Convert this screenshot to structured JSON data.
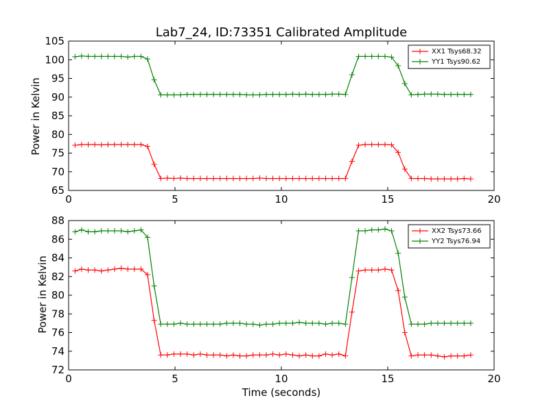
{
  "figure": {
    "title": "Lab7_24, ID:73351 Calibrated Amplitude"
  },
  "chart_data": [
    {
      "type": "line",
      "title": "Lab7_24, ID:73351 Calibrated Amplitude",
      "xlabel": "",
      "ylabel": "Power in Kelvin",
      "xlim": [
        0,
        20
      ],
      "ylim": [
        65,
        105
      ],
      "xticks": [
        0,
        5,
        10,
        15,
        20
      ],
      "yticks": [
        65,
        70,
        75,
        80,
        85,
        90,
        95,
        100,
        105
      ],
      "grid": false,
      "legend_position": "top-right",
      "x": [
        0.3,
        0.61,
        0.92,
        1.23,
        1.54,
        1.85,
        2.16,
        2.47,
        2.78,
        3.09,
        3.4,
        3.71,
        4.02,
        4.33,
        4.64,
        4.95,
        5.26,
        5.57,
        5.88,
        6.19,
        6.5,
        6.81,
        7.12,
        7.43,
        7.74,
        8.05,
        8.36,
        8.67,
        8.98,
        9.29,
        9.6,
        9.91,
        10.22,
        10.53,
        10.84,
        11.15,
        11.46,
        11.77,
        12.08,
        12.39,
        12.7,
        13.01,
        13.32,
        13.63,
        13.94,
        14.25,
        14.56,
        14.87,
        15.18,
        15.49,
        15.8,
        16.11,
        16.42,
        16.73,
        17.04,
        17.35,
        17.66,
        17.97,
        18.28,
        18.59,
        18.9
      ],
      "series": [
        {
          "name": "XX1 Tsys68.32",
          "color": "#ff0000",
          "values": [
            77.1,
            77.3,
            77.3,
            77.3,
            77.2,
            77.3,
            77.3,
            77.3,
            77.3,
            77.3,
            77.3,
            76.8,
            72.0,
            68.2,
            68.3,
            68.2,
            68.3,
            68.2,
            68.2,
            68.2,
            68.2,
            68.2,
            68.2,
            68.2,
            68.2,
            68.2,
            68.2,
            68.2,
            68.3,
            68.2,
            68.2,
            68.2,
            68.2,
            68.2,
            68.2,
            68.2,
            68.2,
            68.2,
            68.2,
            68.2,
            68.2,
            68.2,
            72.8,
            77.1,
            77.3,
            77.3,
            77.3,
            77.3,
            77.2,
            75.2,
            70.7,
            68.2,
            68.2,
            68.2,
            68.1,
            68.1,
            68.1,
            68.1,
            68.1,
            68.2,
            68.1
          ]
        },
        {
          "name": "YY1 Tsys90.62",
          "color": "#008000",
          "values": [
            100.8,
            101.0,
            100.9,
            100.9,
            100.9,
            100.9,
            100.9,
            100.9,
            100.7,
            100.9,
            100.9,
            100.2,
            94.6,
            90.6,
            90.6,
            90.6,
            90.6,
            90.7,
            90.7,
            90.7,
            90.7,
            90.7,
            90.7,
            90.7,
            90.7,
            90.7,
            90.6,
            90.6,
            90.6,
            90.7,
            90.7,
            90.7,
            90.7,
            90.8,
            90.7,
            90.8,
            90.7,
            90.7,
            90.7,
            90.8,
            90.8,
            90.7,
            96.0,
            100.9,
            100.9,
            100.9,
            100.9,
            100.9,
            100.7,
            98.4,
            93.6,
            90.6,
            90.7,
            90.8,
            90.8,
            90.8,
            90.7,
            90.7,
            90.7,
            90.7,
            90.7
          ]
        }
      ]
    },
    {
      "type": "line",
      "title": "",
      "xlabel": "Time (seconds)",
      "ylabel": "Power in Kelvin",
      "xlim": [
        0,
        20
      ],
      "ylim": [
        72,
        88
      ],
      "xticks": [
        0,
        5,
        10,
        15,
        20
      ],
      "yticks": [
        72,
        74,
        76,
        78,
        80,
        82,
        84,
        86,
        88
      ],
      "grid": false,
      "legend_position": "top-right",
      "x": [
        0.3,
        0.61,
        0.92,
        1.23,
        1.54,
        1.85,
        2.16,
        2.47,
        2.78,
        3.09,
        3.4,
        3.71,
        4.02,
        4.33,
        4.64,
        4.95,
        5.26,
        5.57,
        5.88,
        6.19,
        6.5,
        6.81,
        7.12,
        7.43,
        7.74,
        8.05,
        8.36,
        8.67,
        8.98,
        9.29,
        9.6,
        9.91,
        10.22,
        10.53,
        10.84,
        11.15,
        11.46,
        11.77,
        12.08,
        12.39,
        12.7,
        13.01,
        13.32,
        13.63,
        13.94,
        14.25,
        14.56,
        14.87,
        15.18,
        15.49,
        15.8,
        16.11,
        16.42,
        16.73,
        17.04,
        17.35,
        17.66,
        17.97,
        18.28,
        18.59,
        18.9
      ],
      "series": [
        {
          "name": "XX2 Tsys73.66",
          "color": "#ff0000",
          "values": [
            82.6,
            82.8,
            82.7,
            82.7,
            82.6,
            82.7,
            82.8,
            82.9,
            82.8,
            82.8,
            82.8,
            82.2,
            77.3,
            73.6,
            73.6,
            73.7,
            73.7,
            73.7,
            73.6,
            73.7,
            73.6,
            73.6,
            73.6,
            73.5,
            73.6,
            73.5,
            73.5,
            73.6,
            73.6,
            73.6,
            73.7,
            73.6,
            73.7,
            73.6,
            73.5,
            73.6,
            73.5,
            73.5,
            73.7,
            73.6,
            73.7,
            73.5,
            78.2,
            82.6,
            82.7,
            82.7,
            82.7,
            82.8,
            82.7,
            80.5,
            76.0,
            73.5,
            73.6,
            73.6,
            73.6,
            73.5,
            73.4,
            73.5,
            73.5,
            73.5,
            73.6
          ]
        },
        {
          "name": "YY2 Tsys76.94",
          "color": "#008000",
          "values": [
            86.8,
            87.0,
            86.8,
            86.8,
            86.9,
            86.9,
            86.9,
            86.9,
            86.8,
            86.9,
            87.0,
            86.2,
            81.0,
            76.9,
            76.9,
            76.9,
            77.0,
            76.9,
            76.9,
            76.9,
            76.9,
            76.9,
            76.9,
            77.0,
            77.0,
            77.0,
            76.9,
            76.9,
            76.8,
            76.9,
            76.9,
            77.0,
            77.0,
            77.0,
            77.1,
            77.0,
            77.0,
            77.0,
            76.9,
            77.0,
            77.0,
            76.9,
            81.9,
            86.9,
            86.9,
            87.0,
            87.0,
            87.1,
            86.9,
            84.5,
            79.8,
            76.9,
            76.9,
            76.9,
            77.0,
            77.0,
            77.0,
            77.0,
            77.0,
            77.0,
            77.0
          ]
        }
      ]
    }
  ]
}
